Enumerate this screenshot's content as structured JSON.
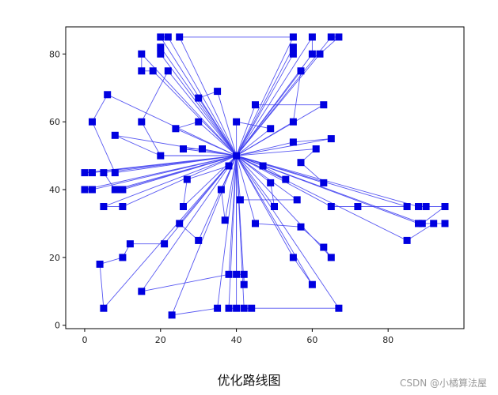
{
  "caption": "优化路线图",
  "watermark": "CSDN @小橘算法屋",
  "colors": {
    "route": "#3a3af0",
    "marker": "#0000e0",
    "axes": "#000000",
    "background": "#ffffff"
  },
  "chart_data": {
    "type": "scatter",
    "title": "",
    "xlabel": "",
    "ylabel": "",
    "xlim": [
      -5,
      100
    ],
    "ylim": [
      -1,
      88
    ],
    "xticks": [
      0,
      20,
      40,
      60,
      80
    ],
    "yticks": [
      0,
      20,
      40,
      60,
      80
    ],
    "grid": false,
    "depot": [
      40,
      50
    ],
    "points": [
      [
        20,
        85
      ],
      [
        22,
        85
      ],
      [
        25,
        85
      ],
      [
        55,
        85
      ],
      [
        60,
        85
      ],
      [
        65,
        85
      ],
      [
        67,
        85
      ],
      [
        20,
        82
      ],
      [
        55,
        82
      ],
      [
        15,
        80
      ],
      [
        20,
        80
      ],
      [
        55,
        80
      ],
      [
        60,
        80
      ],
      [
        62,
        80
      ],
      [
        15,
        75
      ],
      [
        18,
        75
      ],
      [
        22,
        75
      ],
      [
        57,
        75
      ],
      [
        30,
        67
      ],
      [
        35,
        69
      ],
      [
        6,
        68
      ],
      [
        45,
        65
      ],
      [
        63,
        65
      ],
      [
        2,
        60
      ],
      [
        15,
        60
      ],
      [
        30,
        60
      ],
      [
        40,
        60
      ],
      [
        55,
        60
      ],
      [
        24,
        58
      ],
      [
        49,
        58
      ],
      [
        8,
        56
      ],
      [
        65,
        55
      ],
      [
        55,
        54
      ],
      [
        26,
        52
      ],
      [
        31,
        52
      ],
      [
        61,
        52
      ],
      [
        20,
        50
      ],
      [
        57,
        48
      ],
      [
        38,
        47
      ],
      [
        47,
        47
      ],
      [
        0,
        45
      ],
      [
        2,
        45
      ],
      [
        5,
        45
      ],
      [
        8,
        45
      ],
      [
        53,
        43
      ],
      [
        27,
        43
      ],
      [
        49,
        42
      ],
      [
        63,
        42
      ],
      [
        0,
        40
      ],
      [
        2,
        40
      ],
      [
        8,
        40
      ],
      [
        9,
        40
      ],
      [
        10,
        40
      ],
      [
        36,
        40
      ],
      [
        41,
        37
      ],
      [
        56,
        37
      ],
      [
        5,
        35
      ],
      [
        10,
        35
      ],
      [
        26,
        35
      ],
      [
        50,
        35
      ],
      [
        65,
        35
      ],
      [
        72,
        35
      ],
      [
        85,
        35
      ],
      [
        88,
        35
      ],
      [
        90,
        35
      ],
      [
        95,
        35
      ],
      [
        37,
        31
      ],
      [
        25,
        30
      ],
      [
        45,
        30
      ],
      [
        57,
        29
      ],
      [
        88,
        30
      ],
      [
        89,
        30
      ],
      [
        92,
        30
      ],
      [
        95,
        30
      ],
      [
        30,
        25
      ],
      [
        85,
        25
      ],
      [
        21,
        24
      ],
      [
        12,
        24
      ],
      [
        63,
        23
      ],
      [
        4,
        18
      ],
      [
        10,
        20
      ],
      [
        55,
        20
      ],
      [
        65,
        20
      ],
      [
        38,
        15
      ],
      [
        40,
        15
      ],
      [
        42,
        15
      ],
      [
        42,
        12
      ],
      [
        60,
        12
      ],
      [
        15,
        10
      ],
      [
        5,
        5
      ],
      [
        35,
        5
      ],
      [
        38,
        5
      ],
      [
        40,
        5
      ],
      [
        42,
        5
      ],
      [
        44,
        5
      ],
      [
        67,
        5
      ],
      [
        23,
        3
      ]
    ],
    "routes": [
      [
        [
          40,
          50
        ],
        [
          20,
          85
        ],
        [
          22,
          85
        ],
        [
          40,
          50
        ]
      ],
      [
        [
          40,
          50
        ],
        [
          25,
          85
        ],
        [
          55,
          85
        ],
        [
          40,
          50
        ]
      ],
      [
        [
          40,
          50
        ],
        [
          55,
          82
        ],
        [
          55,
          80
        ],
        [
          40,
          50
        ]
      ],
      [
        [
          40,
          50
        ],
        [
          60,
          85
        ],
        [
          60,
          80
        ],
        [
          40,
          50
        ]
      ],
      [
        [
          40,
          50
        ],
        [
          65,
          85
        ],
        [
          67,
          85
        ],
        [
          62,
          80
        ],
        [
          40,
          50
        ]
      ],
      [
        [
          40,
          50
        ],
        [
          20,
          82
        ],
        [
          20,
          80
        ],
        [
          40,
          50
        ]
      ],
      [
        [
          40,
          50
        ],
        [
          15,
          80
        ],
        [
          15,
          75
        ],
        [
          18,
          75
        ],
        [
          40,
          50
        ]
      ],
      [
        [
          40,
          50
        ],
        [
          22,
          75
        ],
        [
          15,
          60
        ],
        [
          20,
          50
        ],
        [
          40,
          50
        ]
      ],
      [
        [
          40,
          50
        ],
        [
          57,
          75
        ],
        [
          55,
          60
        ],
        [
          40,
          50
        ]
      ],
      [
        [
          40,
          50
        ],
        [
          63,
          65
        ],
        [
          45,
          65
        ],
        [
          40,
          50
        ]
      ],
      [
        [
          40,
          50
        ],
        [
          30,
          67
        ],
        [
          35,
          69
        ],
        [
          40,
          50
        ]
      ],
      [
        [
          40,
          50
        ],
        [
          6,
          68
        ],
        [
          2,
          60
        ],
        [
          8,
          45
        ],
        [
          40,
          50
        ]
      ],
      [
        [
          40,
          50
        ],
        [
          30,
          60
        ],
        [
          24,
          58
        ],
        [
          40,
          50
        ]
      ],
      [
        [
          40,
          50
        ],
        [
          40,
          60
        ],
        [
          49,
          58
        ],
        [
          40,
          50
        ]
      ],
      [
        [
          40,
          50
        ],
        [
          65,
          55
        ],
        [
          55,
          54
        ],
        [
          40,
          50
        ]
      ],
      [
        [
          40,
          50
        ],
        [
          61,
          52
        ],
        [
          57,
          48
        ],
        [
          63,
          42
        ],
        [
          40,
          50
        ]
      ],
      [
        [
          40,
          50
        ],
        [
          26,
          52
        ],
        [
          31,
          52
        ],
        [
          40,
          50
        ]
      ],
      [
        [
          40,
          50
        ],
        [
          8,
          56
        ],
        [
          20,
          50
        ],
        [
          40,
          50
        ]
      ],
      [
        [
          40,
          50
        ],
        [
          0,
          45
        ],
        [
          2,
          45
        ],
        [
          40,
          50
        ]
      ],
      [
        [
          40,
          50
        ],
        [
          5,
          45
        ],
        [
          8,
          40
        ],
        [
          40,
          50
        ]
      ],
      [
        [
          40,
          50
        ],
        [
          0,
          40
        ],
        [
          2,
          40
        ],
        [
          40,
          50
        ]
      ],
      [
        [
          40,
          50
        ],
        [
          9,
          40
        ],
        [
          10,
          40
        ],
        [
          40,
          50
        ]
      ],
      [
        [
          40,
          50
        ],
        [
          38,
          47
        ],
        [
          27,
          43
        ],
        [
          26,
          35
        ],
        [
          40,
          50
        ]
      ],
      [
        [
          40,
          50
        ],
        [
          47,
          47
        ],
        [
          53,
          43
        ],
        [
          40,
          50
        ]
      ],
      [
        [
          40,
          50
        ],
        [
          49,
          42
        ],
        [
          50,
          35
        ],
        [
          40,
          50
        ]
      ],
      [
        [
          40,
          50
        ],
        [
          36,
          40
        ],
        [
          37,
          31
        ],
        [
          40,
          50
        ]
      ],
      [
        [
          40,
          50
        ],
        [
          41,
          37
        ],
        [
          56,
          37
        ],
        [
          40,
          50
        ]
      ],
      [
        [
          40,
          50
        ],
        [
          5,
          35
        ],
        [
          10,
          35
        ],
        [
          40,
          50
        ]
      ],
      [
        [
          40,
          50
        ],
        [
          65,
          35
        ],
        [
          72,
          35
        ],
        [
          85,
          35
        ],
        [
          40,
          50
        ]
      ],
      [
        [
          40,
          50
        ],
        [
          88,
          35
        ],
        [
          90,
          35
        ],
        [
          95,
          35
        ],
        [
          89,
          30
        ],
        [
          40,
          50
        ]
      ],
      [
        [
          40,
          50
        ],
        [
          88,
          30
        ],
        [
          95,
          30
        ],
        [
          92,
          30
        ],
        [
          85,
          25
        ],
        [
          40,
          50
        ]
      ],
      [
        [
          40,
          50
        ],
        [
          25,
          30
        ],
        [
          30,
          25
        ],
        [
          40,
          50
        ]
      ],
      [
        [
          40,
          50
        ],
        [
          45,
          30
        ],
        [
          57,
          29
        ],
        [
          63,
          23
        ],
        [
          65,
          20
        ],
        [
          40,
          50
        ]
      ],
      [
        [
          40,
          50
        ],
        [
          21,
          24
        ],
        [
          12,
          24
        ],
        [
          10,
          20
        ],
        [
          4,
          18
        ],
        [
          5,
          5
        ],
        [
          40,
          50
        ]
      ],
      [
        [
          40,
          50
        ],
        [
          55,
          20
        ],
        [
          60,
          12
        ],
        [
          40,
          50
        ]
      ],
      [
        [
          40,
          50
        ],
        [
          38,
          15
        ],
        [
          15,
          10
        ],
        [
          40,
          50
        ]
      ],
      [
        [
          40,
          50
        ],
        [
          40,
          15
        ],
        [
          42,
          15
        ],
        [
          42,
          12
        ],
        [
          40,
          50
        ]
      ],
      [
        [
          40,
          50
        ],
        [
          35,
          5
        ],
        [
          23,
          3
        ],
        [
          40,
          50
        ]
      ],
      [
        [
          40,
          50
        ],
        [
          38,
          5
        ],
        [
          40,
          5
        ],
        [
          40,
          50
        ]
      ],
      [
        [
          40,
          50
        ],
        [
          42,
          5
        ],
        [
          44,
          5
        ],
        [
          67,
          5
        ],
        [
          40,
          50
        ]
      ]
    ]
  }
}
